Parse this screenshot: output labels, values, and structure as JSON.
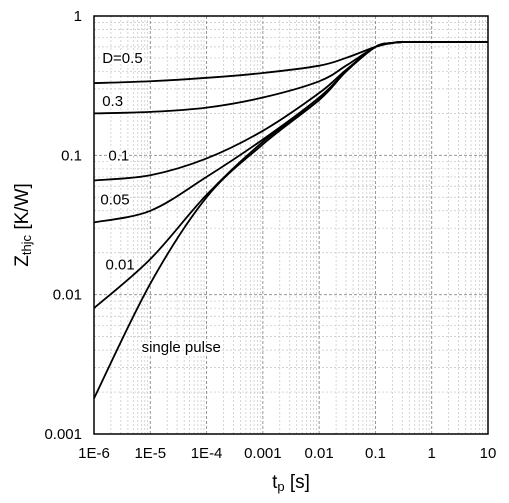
{
  "chart_data": {
    "type": "line",
    "title": "",
    "x_scale": "log",
    "y_scale": "log",
    "xlim": [
      1e-06,
      10
    ],
    "ylim": [
      0.001,
      1
    ],
    "grid": true,
    "xlabel": {
      "main": "t",
      "sub": "p",
      "unit": " [s]"
    },
    "ylabel": {
      "main": "Z",
      "sub": "thjc",
      "unit": " [K/W]"
    },
    "x_ticks": [
      {
        "value": 1e-06,
        "label": "1E-6"
      },
      {
        "value": 1e-05,
        "label": "1E-5"
      },
      {
        "value": 0.0001,
        "label": "1E-4"
      },
      {
        "value": 0.001,
        "label": "0.001"
      },
      {
        "value": 0.01,
        "label": "0.01"
      },
      {
        "value": 0.1,
        "label": "0.1"
      },
      {
        "value": 1,
        "label": "1"
      },
      {
        "value": 10,
        "label": "10"
      }
    ],
    "y_ticks": [
      {
        "value": 1,
        "label": "1"
      },
      {
        "value": 0.1,
        "label": "0.1"
      },
      {
        "value": 0.01,
        "label": "0.01"
      },
      {
        "value": 0.001,
        "label": "0.001"
      }
    ],
    "series": [
      {
        "name": "D=0.5",
        "x": [
          1e-06,
          1e-05,
          0.0001,
          0.001,
          0.01,
          0.03,
          0.1,
          0.2,
          0.3,
          1,
          10
        ],
        "y": [
          0.33,
          0.34,
          0.36,
          0.39,
          0.44,
          0.5,
          0.6,
          0.64,
          0.65,
          0.65,
          0.65
        ]
      },
      {
        "name": "0.3",
        "x": [
          1e-06,
          1e-05,
          0.0001,
          0.001,
          0.01,
          0.03,
          0.1,
          0.2,
          0.3,
          1,
          10
        ],
        "y": [
          0.2,
          0.205,
          0.22,
          0.26,
          0.34,
          0.44,
          0.6,
          0.64,
          0.65,
          0.65,
          0.65
        ]
      },
      {
        "name": "0.1",
        "x": [
          1e-06,
          1e-05,
          0.0001,
          0.001,
          0.01,
          0.03,
          0.1,
          0.2,
          0.3,
          1,
          10
        ],
        "y": [
          0.066,
          0.072,
          0.095,
          0.15,
          0.28,
          0.41,
          0.6,
          0.64,
          0.65,
          0.65,
          0.65
        ]
      },
      {
        "name": "0.05",
        "x": [
          1e-06,
          1e-05,
          0.0001,
          0.001,
          0.01,
          0.03,
          0.1,
          0.2,
          0.3,
          1,
          10
        ],
        "y": [
          0.033,
          0.04,
          0.07,
          0.13,
          0.26,
          0.4,
          0.6,
          0.64,
          0.65,
          0.65,
          0.65
        ]
      },
      {
        "name": "0.01",
        "x": [
          1e-06,
          1e-05,
          0.0001,
          0.001,
          0.01,
          0.03,
          0.1,
          0.2,
          0.3,
          1,
          10
        ],
        "y": [
          0.008,
          0.018,
          0.052,
          0.125,
          0.25,
          0.4,
          0.6,
          0.64,
          0.65,
          0.65,
          0.65
        ]
      },
      {
        "name": "single pulse",
        "x": [
          1e-06,
          1e-05,
          0.0001,
          0.001,
          0.01,
          0.03,
          0.1,
          0.2,
          0.3,
          1,
          10
        ],
        "y": [
          0.0018,
          0.012,
          0.05,
          0.12,
          0.25,
          0.4,
          0.6,
          0.64,
          0.65,
          0.65,
          0.65
        ]
      }
    ],
    "curve_labels": [
      {
        "series": "D=0.5",
        "text": "D=0.5",
        "x": 1.4e-06,
        "y": 0.5
      },
      {
        "series": "0.3",
        "text": "0.3",
        "x": 1.4e-06,
        "y": 0.245
      },
      {
        "series": "0.1",
        "text": "0.1",
        "x": 1.8e-06,
        "y": 0.1
      },
      {
        "series": "0.05",
        "text": "0.05",
        "x": 1.3e-06,
        "y": 0.048
      },
      {
        "series": "0.01",
        "text": "0.01",
        "x": 1.6e-06,
        "y": 0.0165
      },
      {
        "series": "single pulse",
        "text": "single pulse",
        "x": 7e-06,
        "y": 0.0042
      }
    ]
  }
}
